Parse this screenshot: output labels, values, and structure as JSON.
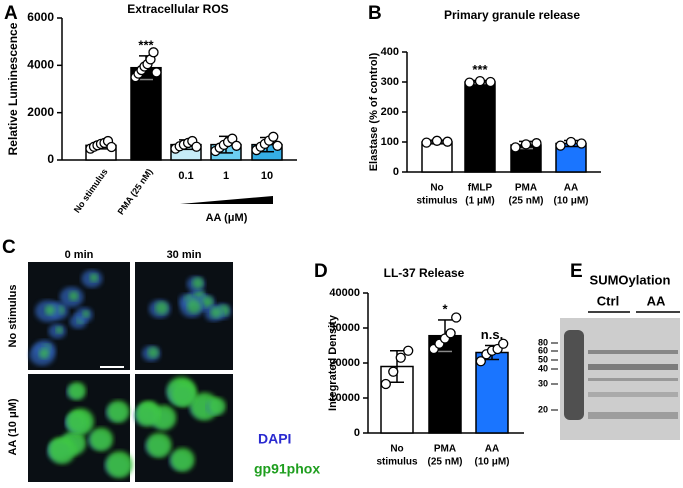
{
  "chart_data": [
    {
      "type": "bar",
      "title": "Extracellular ROS",
      "y_label": "Relative Luminescence",
      "categories": [
        [
          "No stimulus"
        ],
        [
          "PMA (25 nM)"
        ],
        [
          "0.1"
        ],
        [
          "1"
        ],
        [
          "10"
        ]
      ],
      "values": [
        620,
        3900,
        650,
        650,
        650
      ],
      "errors": [
        150,
        500,
        200,
        350,
        300
      ],
      "points": [
        [
          480,
          560,
          620,
          680,
          720,
          800,
          550
        ],
        [
          3500,
          3650,
          3800,
          3950,
          4050,
          4250,
          4550,
          3700
        ],
        [
          480,
          580,
          650,
          720,
          800,
          560
        ],
        [
          380,
          520,
          640,
          760,
          900,
          600
        ],
        [
          420,
          560,
          680,
          820,
          980,
          600
        ]
      ],
      "colors": [
        "#ffffff",
        "#000000",
        "#c6ecf8",
        "#6ccff1",
        "#35aee6"
      ],
      "annotations": [
        null,
        "***",
        null,
        null,
        null
      ],
      "x_group_label": "AA (μM)",
      "ylim": [
        0,
        6000
      ],
      "yticks": [
        0,
        2000,
        4000,
        6000
      ]
    },
    {
      "type": "bar",
      "title": "Primary granule release",
      "y_label": "Elastase (% of control)",
      "categories": [
        [
          "No",
          "stimulus"
        ],
        [
          "fMLP",
          "(1 μM)"
        ],
        [
          "PMA",
          "(25 nM)"
        ],
        [
          "AA",
          "(10 μM)"
        ]
      ],
      "values": [
        100,
        300,
        90,
        95
      ],
      "errors": [
        6,
        5,
        12,
        10
      ],
      "points": [
        [
          98,
          104,
          101
        ],
        [
          298,
          303,
          300
        ],
        [
          82,
          92,
          96
        ],
        [
          88,
          100,
          95
        ]
      ],
      "colors": [
        "#ffffff",
        "#000000",
        "#000000",
        "#1a75ff"
      ],
      "annotations": [
        null,
        "***",
        null,
        null
      ],
      "ylim": [
        0,
        400
      ],
      "yticks": [
        0,
        100,
        200,
        300,
        400
      ]
    },
    {
      "type": "bar",
      "title": "LL-37 Release",
      "y_label": "Integrated Density",
      "categories": [
        [
          "No",
          "stimulus"
        ],
        [
          "PMA",
          "(25 nM)"
        ],
        [
          "AA",
          "(10 μM)"
        ]
      ],
      "values": [
        19000,
        27800,
        23000
      ],
      "errors": [
        4500,
        4500,
        2000
      ],
      "points": [
        [
          14000,
          17500,
          21500,
          23500
        ],
        [
          24000,
          25500,
          27000,
          28500,
          33000
        ],
        [
          20500,
          22500,
          23500,
          24000,
          25500
        ]
      ],
      "colors": [
        "#ffffff",
        "#000000",
        "#1a75ff"
      ],
      "annotations": [
        null,
        "*",
        "n.s."
      ],
      "ylim": [
        0,
        40000
      ],
      "yticks": [
        0,
        10000,
        20000,
        30000,
        40000
      ]
    }
  ],
  "figure": {
    "panel_letters": [
      "A",
      "B",
      "C",
      "D",
      "E"
    ],
    "panel_c": {
      "columns": [
        "0 min",
        "30 min"
      ],
      "rows": [
        "No stimulus",
        "AA (10 μM)"
      ],
      "legend": [
        "DAPI",
        "gp91phox"
      ]
    },
    "panel_e": {
      "title": "SUMOylation",
      "lanes": [
        "Ctrl",
        "AA"
      ],
      "markers": [
        80,
        60,
        50,
        40,
        30,
        20
      ]
    }
  }
}
